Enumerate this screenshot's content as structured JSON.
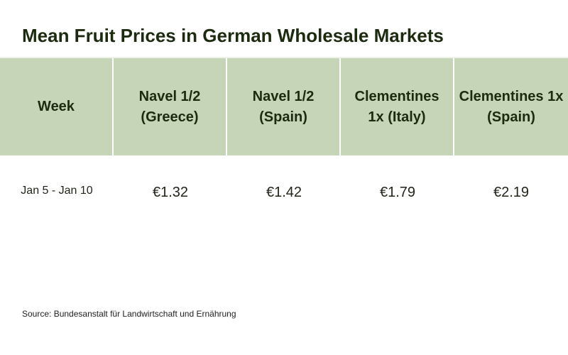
{
  "title": "Mean Fruit Prices in German Wholesale Markets",
  "source": "Source: Bundesanstalt für Landwirtschaft und Ernährung",
  "colors": {
    "header_background": "#c6d5b7",
    "title_text": "#1c2a10"
  },
  "chart_data": {
    "type": "table",
    "title": "Mean Fruit Prices in German Wholesale Markets",
    "columns": [
      "Week",
      "Navel 1/2 (Greece)",
      "Navel 1/2 (Spain)",
      "Clementines 1x (Italy)",
      "Clementines 1x (Spain)"
    ],
    "rows": [
      [
        "Jan 5 - Jan 10",
        "€1.32",
        "€1.42",
        "€1.79",
        "€2.19"
      ]
    ],
    "source": "Source: Bundesanstalt für Landwirtschaft und Ernährung"
  }
}
